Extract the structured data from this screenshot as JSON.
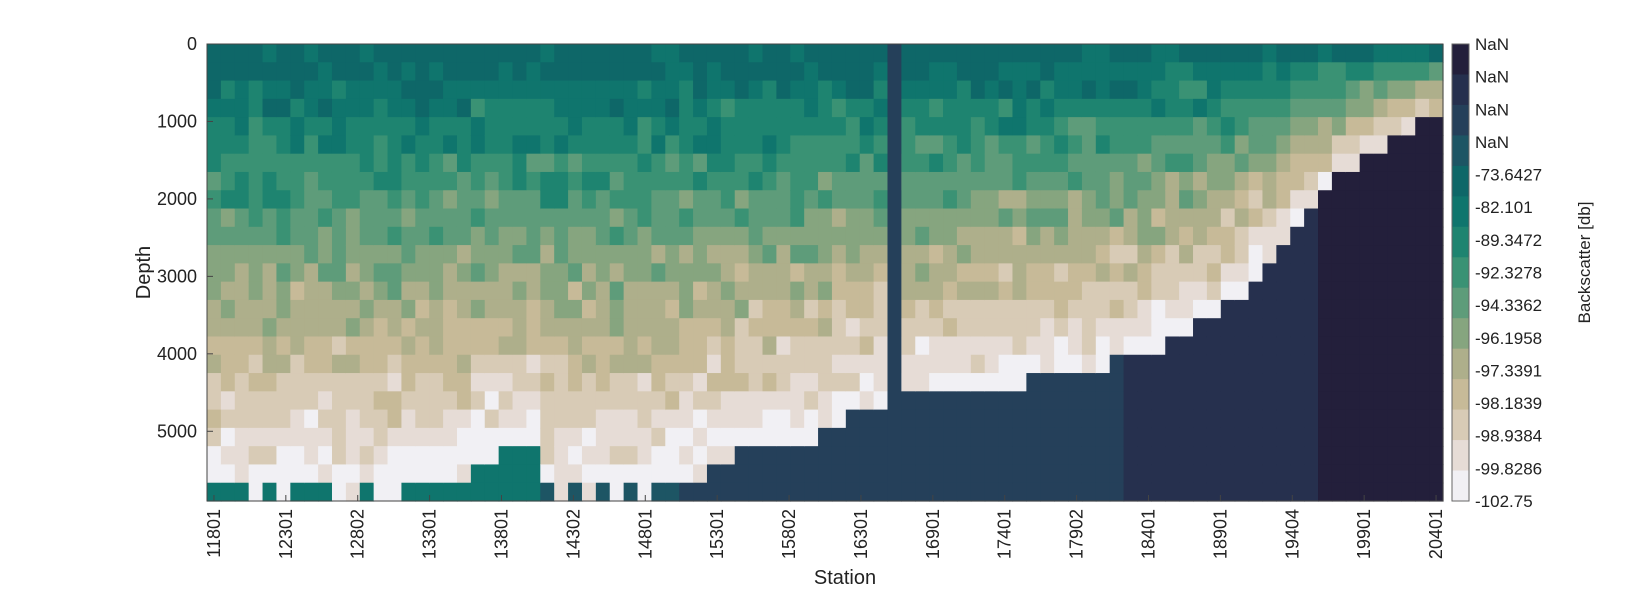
{
  "chart_data": {
    "type": "heatmap",
    "xlabel": "Station",
    "ylabel": "Depth",
    "colorbar_label": "Backscatter [db]",
    "x_ticks": [
      "11801",
      "12301",
      "12802",
      "13301",
      "13801",
      "14302",
      "14801",
      "15301",
      "15802",
      "16301",
      "16901",
      "17401",
      "17902",
      "18401",
      "18901",
      "19404",
      "19901",
      "20401"
    ],
    "y_ticks": [
      "0",
      "1000",
      "2000",
      "3000",
      "4000",
      "5000"
    ],
    "y_tick_values": [
      0,
      1000,
      2000,
      3000,
      4000,
      5000
    ],
    "ylim": [
      0,
      5900
    ],
    "colorbar_levels": [
      "NaN",
      "NaN",
      "NaN",
      "NaN",
      "-73.6427",
      "-82.101",
      "-89.3472",
      "-92.3278",
      "-94.3362",
      "-96.1958",
      "-97.3391",
      "-98.1839",
      "-98.9384",
      "-99.8286",
      "-102.75"
    ],
    "colorbar_colors": [
      "#231f3b",
      "#26304e",
      "#25405a",
      "#1d5564",
      "#0e6768",
      "#0f756d",
      "#1e8470",
      "#3a9274",
      "#5e9c7a",
      "#86a57f",
      "#aeaf8b",
      "#c7ba98",
      "#d8cbb6",
      "#e6dcd6",
      "#f1f0f4"
    ],
    "n_columns": 89,
    "n_depth_bins": 25,
    "column_bottom_depth": [
      5750,
      5750,
      5750,
      5800,
      5750,
      5800,
      5700,
      5650,
      5700,
      5800,
      5800,
      5750,
      5800,
      5800,
      5600,
      5700,
      5650,
      5550,
      5550,
      5450,
      5400,
      5300,
      5200,
      5200,
      5750,
      5800,
      5700,
      5800,
      5750,
      5800,
      5750,
      5800,
      5650,
      5650,
      5600,
      5550,
      5450,
      5350,
      5300,
      5250,
      5200,
      5150,
      5100,
      5100,
      4950,
      4850,
      4750,
      4650,
      4650,
      4600,
      4600,
      4550,
      4550,
      4550,
      4500,
      4500,
      4450,
      4400,
      4400,
      4350,
      4300,
      4250,
      4200,
      4200,
      4150,
      4100,
      4050,
      4000,
      3900,
      3800,
      3700,
      3650,
      3500,
      3350,
      3200,
      3000,
      2850,
      2600,
      2350,
      2100,
      1900,
      1700,
      1600,
      1500,
      1350,
      1250,
      1150,
      1050,
      1000
    ],
    "column_fill_level": [
      3,
      3,
      3,
      3,
      3,
      3,
      3,
      3,
      3,
      3,
      3,
      3,
      3,
      3,
      3,
      3,
      3,
      3,
      3,
      3,
      3,
      3,
      3,
      3,
      3,
      3,
      3,
      3,
      3,
      3,
      3,
      3,
      3,
      3,
      3,
      3,
      3,
      3,
      3,
      3,
      3,
      3,
      3,
      3,
      3,
      3,
      3,
      3,
      3,
      3,
      3,
      3,
      3,
      3,
      3,
      3,
      3,
      3,
      3,
      3,
      3,
      3,
      3,
      3,
      3,
      3,
      3,
      3,
      3,
      3,
      3,
      3,
      3,
      3,
      3,
      3,
      3,
      3,
      3,
      3,
      3,
      3,
      3,
      3,
      3,
      3,
      3,
      3,
      3
    ]
  }
}
